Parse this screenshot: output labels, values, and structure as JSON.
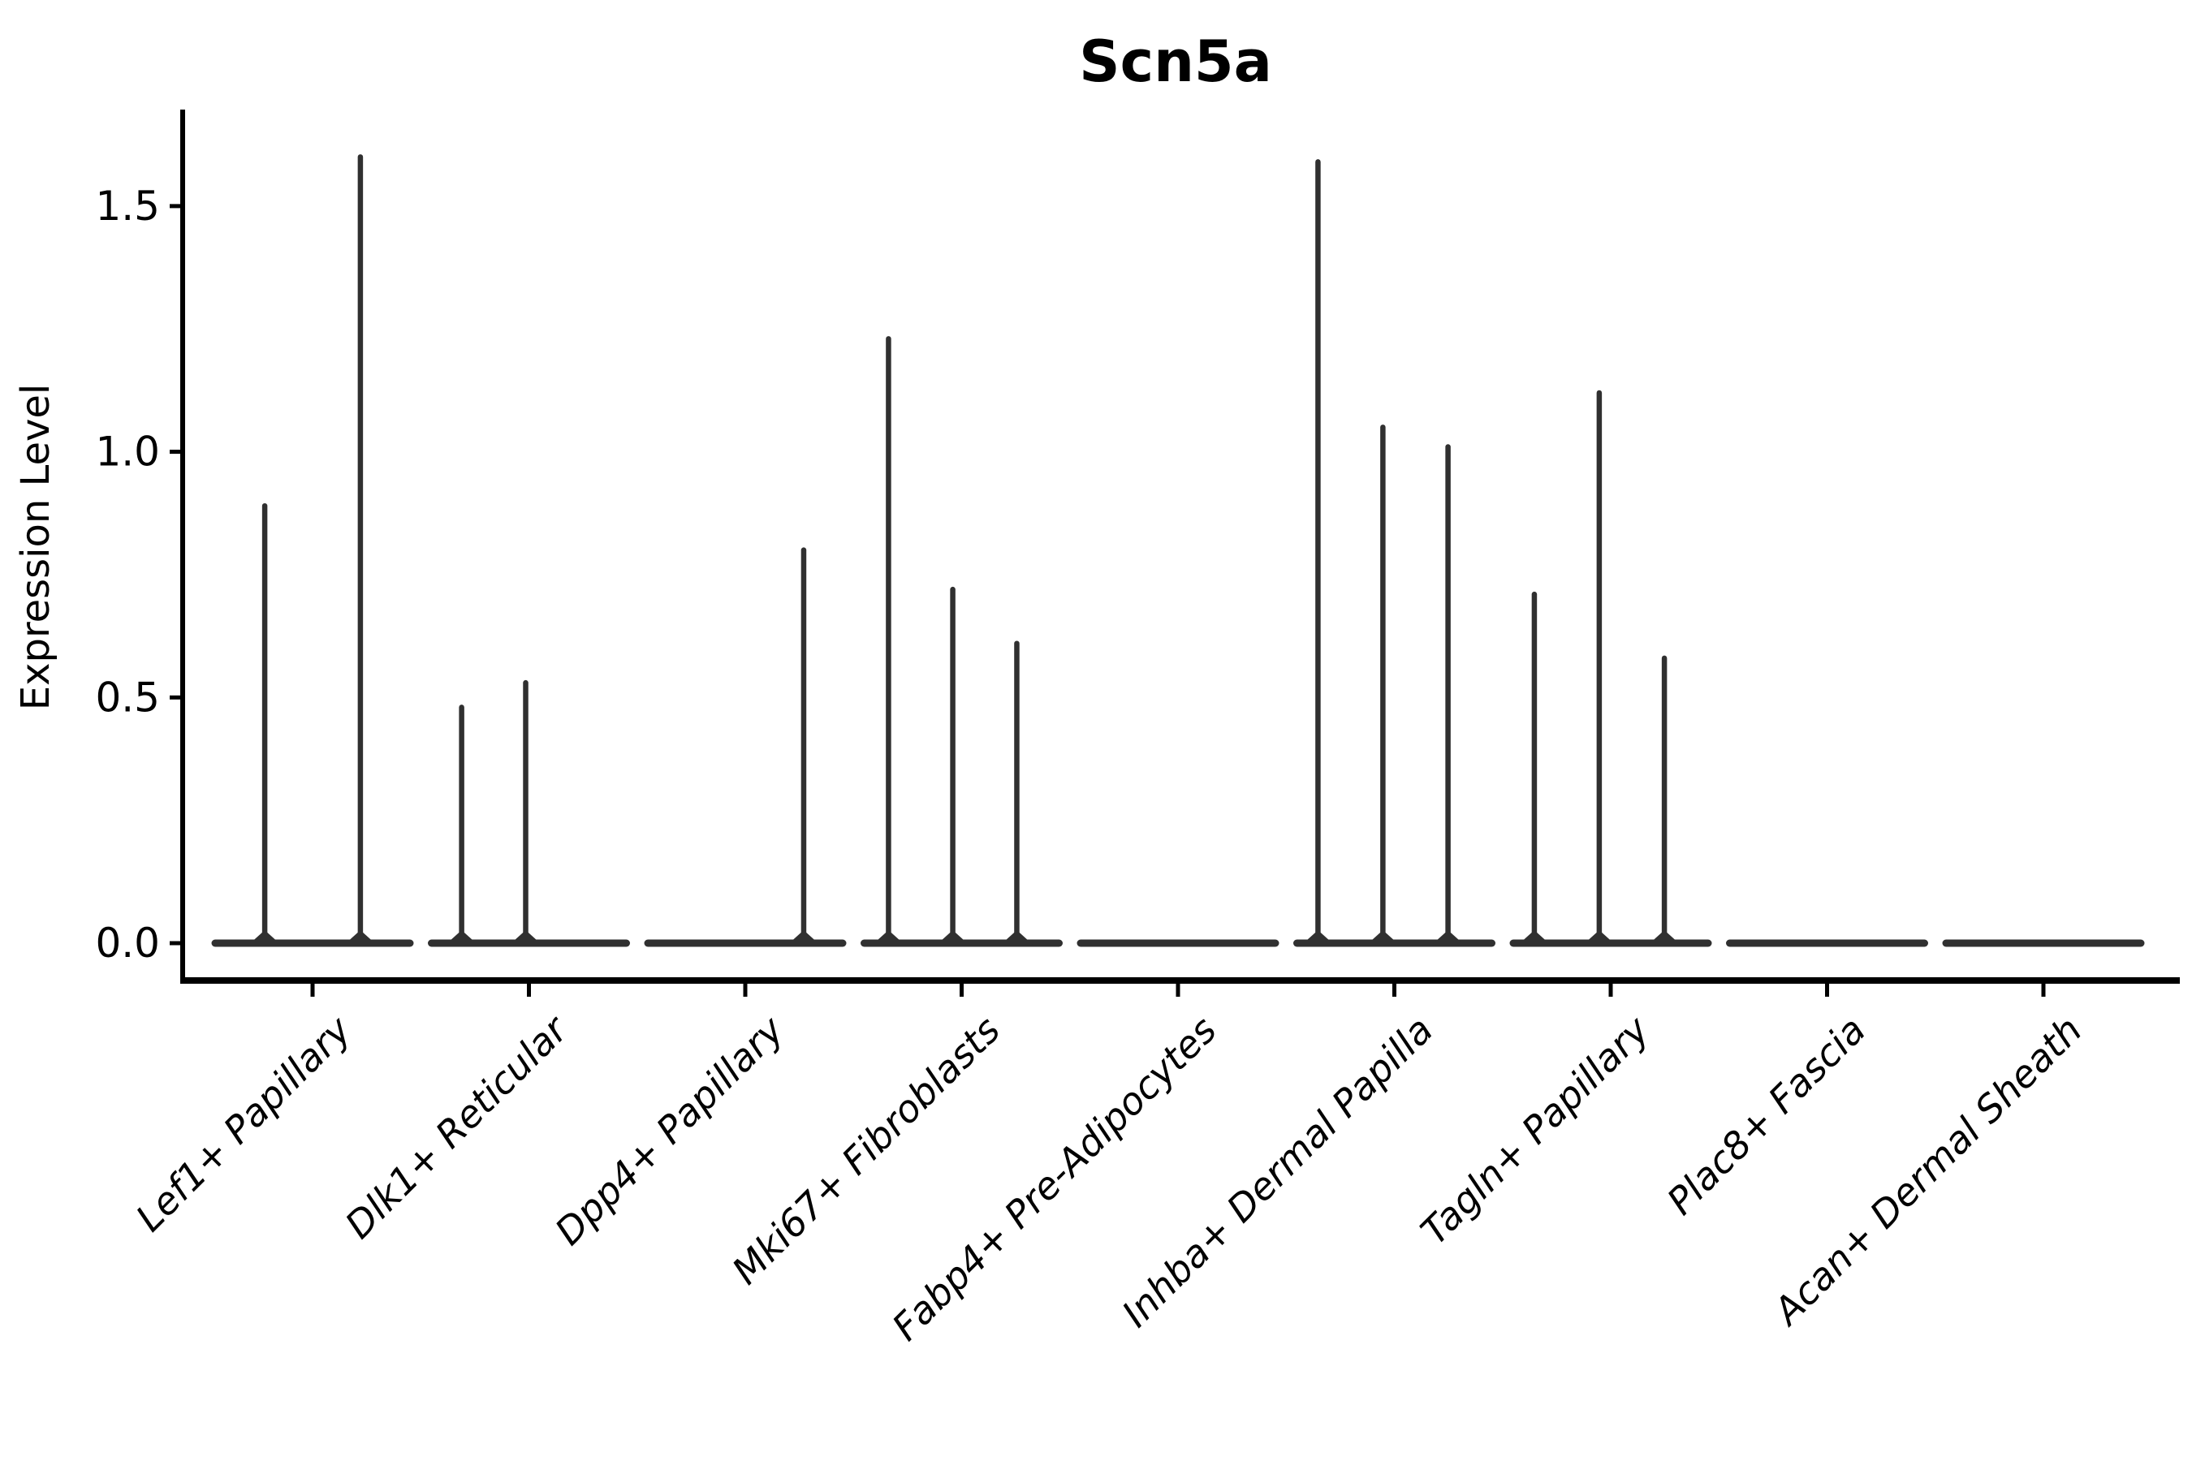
{
  "chart_data": {
    "type": "violin",
    "title": "Scn5a",
    "ylabel": "Expression Level",
    "xlabel": "",
    "legend": "none",
    "grid": false,
    "background": "#ffffff",
    "colors": {
      "violin": "#303030",
      "axis": "#000000",
      "text": "#000000"
    },
    "ytick_labels": [
      "0.0",
      "0.5",
      "1.0",
      "1.5"
    ],
    "ytick_values": [
      0.0,
      0.5,
      1.0,
      1.5
    ],
    "ylim": [
      -0.076,
      1.69
    ],
    "categories": [
      "Lef1+ Papillary",
      "Dlk1+ Reticular",
      "Dpp4+ Papillary",
      "Mki67+ Fibroblasts",
      "Fabp4+ Pre-Adipocytes",
      "Inhba+ Dermal Papilla",
      "Tagln+ Papillary",
      "Plac8+ Fascia",
      "Acan+ Dermal Sheath"
    ],
    "violins": [
      {
        "category": "Lef1+ Papillary",
        "baseline_value": 0.0,
        "spikes": [
          {
            "offset_frac": -0.221,
            "max": 0.89
          },
          {
            "offset_frac": 0.221,
            "max": 1.6
          }
        ]
      },
      {
        "category": "Dlk1+ Reticular",
        "baseline_value": 0.0,
        "spikes": [
          {
            "offset_frac": -0.311,
            "max": 0.48
          },
          {
            "offset_frac": -0.015,
            "max": 0.53
          }
        ]
      },
      {
        "category": "Dpp4+ Papillary",
        "baseline_value": 0.0,
        "spikes": [
          {
            "offset_frac": 0.27,
            "max": 0.8
          }
        ]
      },
      {
        "category": "Mki67+ Fibroblasts",
        "baseline_value": 0.0,
        "spikes": [
          {
            "offset_frac": -0.338,
            "max": 1.23
          },
          {
            "offset_frac": -0.041,
            "max": 0.72
          },
          {
            "offset_frac": 0.255,
            "max": 0.61
          }
        ]
      },
      {
        "category": "Fabp4+ Pre-Adipocytes",
        "baseline_value": 0.0,
        "spikes": []
      },
      {
        "category": "Inhba+ Dermal Papilla",
        "baseline_value": 0.0,
        "spikes": [
          {
            "offset_frac": -0.353,
            "max": 1.59
          },
          {
            "offset_frac": -0.053,
            "max": 1.05
          },
          {
            "offset_frac": 0.248,
            "max": 1.01
          }
        ]
      },
      {
        "category": "Tagln+ Papillary",
        "baseline_value": 0.0,
        "spikes": [
          {
            "offset_frac": -0.353,
            "max": 0.71
          },
          {
            "offset_frac": -0.053,
            "max": 1.12
          },
          {
            "offset_frac": 0.248,
            "max": 0.58
          }
        ]
      },
      {
        "category": "Plac8+ Fascia",
        "baseline_value": 0.0,
        "spikes": []
      },
      {
        "category": "Acan+ Dermal Sheath",
        "baseline_value": 0.0,
        "spikes": []
      }
    ]
  }
}
